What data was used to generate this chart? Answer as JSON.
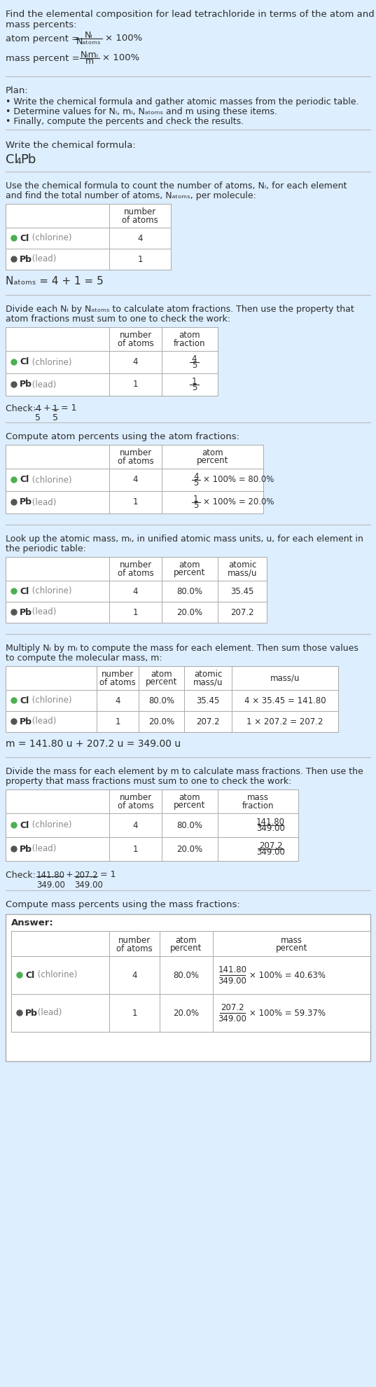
{
  "bg_color": "#ddeeff",
  "text_color": "#2c2c2c",
  "cl_color": "#4caf50",
  "pb_color": "#555555",
  "fig_width": 5.37,
  "fig_height": 19.8,
  "dpi": 100
}
